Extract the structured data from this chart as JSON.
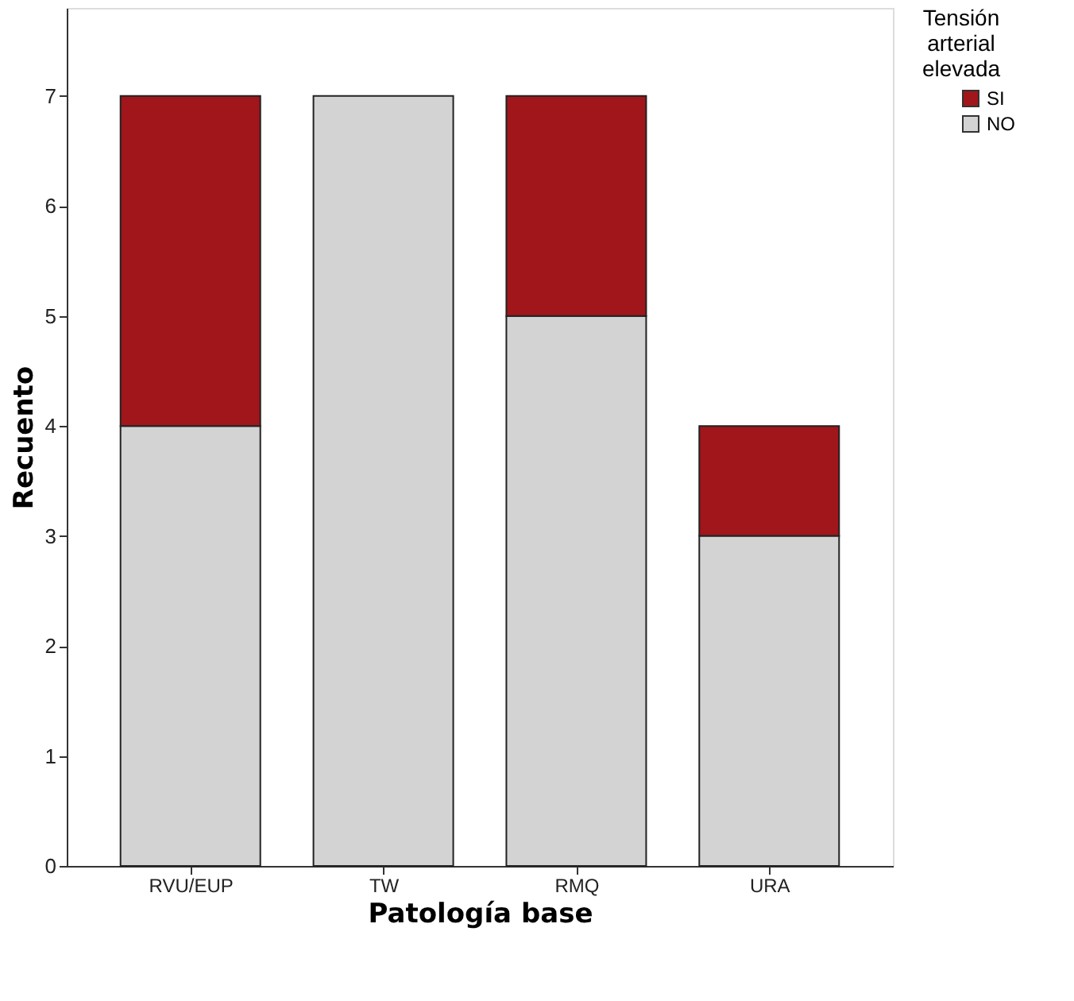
{
  "chart_data": {
    "type": "bar",
    "stacked": true,
    "xlabel": "Patología base",
    "ylabel": "Recuento",
    "legend_title": "Tensión arterial elevada",
    "legend": "top right",
    "categories": [
      "RVU/EUP",
      "TW",
      "RMQ",
      "URA"
    ],
    "series": [
      {
        "name": "NO",
        "color": "#d3d3d3",
        "values": [
          4,
          7,
          5,
          3
        ]
      },
      {
        "name": "SI",
        "color": "#a0161b",
        "values": [
          3,
          null,
          2,
          1
        ]
      }
    ],
    "ylim": [
      0,
      7.8
    ],
    "yticks": [
      0,
      1,
      2,
      3,
      4,
      5,
      6,
      7
    ],
    "grid": false
  }
}
